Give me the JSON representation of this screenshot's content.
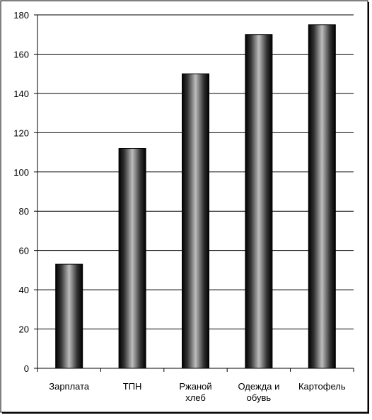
{
  "chart_data": {
    "type": "bar",
    "categories": [
      "Зарплата",
      "ТПН",
      "Ржаной хлеб",
      "Одежда и обувь",
      "Картофель"
    ],
    "values": [
      53,
      112,
      150,
      170,
      175
    ],
    "color": "#000000",
    "ylim": [
      0,
      180
    ],
    "yticks": [
      0,
      20,
      40,
      60,
      80,
      100,
      120,
      140,
      160,
      180
    ],
    "grid": true
  }
}
